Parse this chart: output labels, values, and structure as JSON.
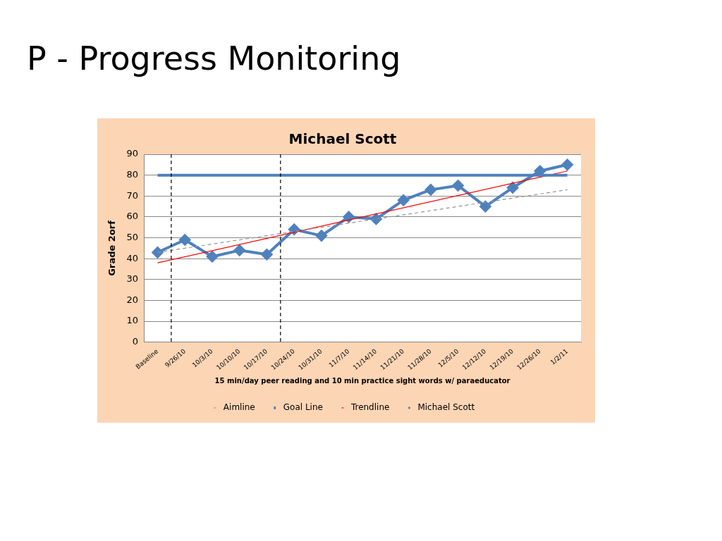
{
  "chart_data": {
    "type": "line",
    "title": "Michael Scott",
    "annotations": [
      "P - Progress Monitoring"
    ],
    "xlabel": "15 min/day peer reading and 10 min practice sight words w/ paraeducator",
    "ylabel": "Grade 2orf",
    "categories": [
      "Baseline",
      "9/26/10",
      "10/3/10",
      "10/10/10",
      "10/17/10",
      "10/24/10",
      "10/31/10",
      "11/7/10",
      "11/14/10",
      "11/21/10",
      "11/28/10",
      "12/5/10",
      "12/12/10",
      "12/19/10",
      "12/26/10",
      "1/2/11"
    ],
    "series": [
      {
        "name": "Michael Scott",
        "color": "#4f81bd",
        "marker": "diamond",
        "line_style": "solid",
        "values": [
          43,
          49,
          41,
          44,
          42,
          54,
          51,
          60,
          59,
          68,
          73,
          75,
          65,
          74,
          82,
          85
        ]
      },
      {
        "name": "Aimline",
        "color": "#969696",
        "marker": "none",
        "line_style": "dashed",
        "values": [
          43,
          null,
          null,
          null,
          null,
          null,
          null,
          null,
          null,
          null,
          null,
          null,
          null,
          null,
          null,
          73
        ]
      },
      {
        "name": "Goal Line",
        "color": "#4f81bd",
        "marker": "none",
        "line_style": "solid",
        "values": [
          80,
          null,
          null,
          null,
          null,
          null,
          null,
          null,
          null,
          null,
          null,
          null,
          null,
          null,
          null,
          80
        ]
      },
      {
        "name": "Trendline",
        "color": "#ff0000",
        "marker": "none",
        "line_style": "solid",
        "values": [
          38,
          null,
          null,
          null,
          null,
          null,
          null,
          null,
          null,
          null,
          null,
          null,
          null,
          null,
          null,
          82
        ]
      }
    ],
    "ref_lines": [
      {
        "axis": "x",
        "value": "9/26/10",
        "color": "#000000",
        "line_style": "dashed"
      },
      {
        "axis": "x",
        "value": "10/24/10",
        "color": "#000000",
        "line_style": "dashed"
      }
    ],
    "ylim": [
      0,
      90
    ],
    "yticks": [
      0,
      10,
      20,
      30,
      40,
      50,
      60,
      70,
      80,
      90
    ],
    "grid": "y",
    "legend": "bottom"
  }
}
